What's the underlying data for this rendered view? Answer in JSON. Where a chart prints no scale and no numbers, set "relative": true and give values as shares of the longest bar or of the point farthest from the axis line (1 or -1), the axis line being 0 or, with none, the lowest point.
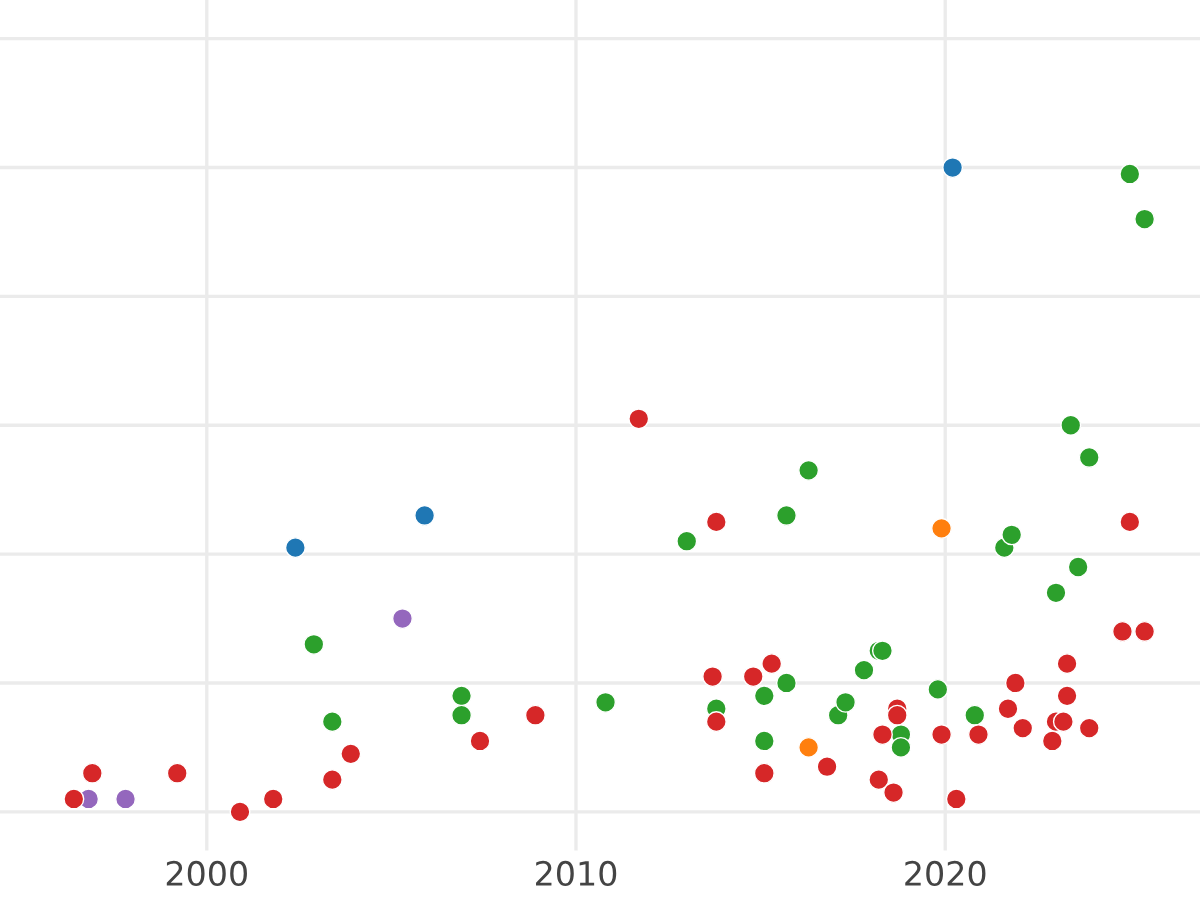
{
  "chart_data": {
    "type": "scatter",
    "relative": true,
    "xlim": [
      1994.4,
      2026.9
    ],
    "xticks": [
      2000,
      2010,
      2020
    ],
    "grid": true,
    "marker": "circle",
    "series": [
      {
        "color": "#1f77b4",
        "x": [
          2002.4,
          2005.9,
          2020.2
        ],
        "values": [
          0.41,
          0.46,
          1
        ]
      },
      {
        "color": "#9467bd",
        "x": [
          1996.8,
          1997.8,
          2005.3
        ],
        "values": [
          0.02,
          0.02,
          0.3
        ]
      },
      {
        "color": "#ff7f0e",
        "x": [
          2016.3,
          2019.9
        ],
        "values": [
          0.1,
          0.44
        ]
      },
      {
        "color": "#2ca02c",
        "x": [
          2002.9,
          2003.4,
          2006.9,
          2006.9,
          2010.8,
          2013.0,
          2013.8,
          2015.1,
          2015.1,
          2015.7,
          2016.3,
          2015.7,
          2017.1,
          2017.3,
          2017.8,
          2018.2,
          2018.3,
          2018.8,
          2018.8,
          2019.8,
          2020.8,
          2021.6,
          2021.8,
          2023.0,
          2023.6,
          2023.4,
          2023.9,
          2025.0,
          2025.4
        ],
        "values": [
          0.26,
          0.14,
          0.18,
          0.15,
          0.17,
          0.42,
          0.16,
          0.18,
          0.11,
          0.2,
          0.53,
          0.46,
          0.15,
          0.17,
          0.22,
          0.25,
          0.25,
          0.12,
          0.1,
          0.19,
          0.15,
          0.41,
          0.43,
          0.34,
          0.38,
          0.6,
          0.55,
          0.99,
          0.92
        ]
      },
      {
        "color": "#d62728",
        "x": [
          1996.4,
          1996.9,
          1999.2,
          2000.9,
          2001.8,
          2003.4,
          2003.9,
          2007.4,
          2008.9,
          2011.7,
          2013.8,
          2013.7,
          2013.8,
          2014.8,
          2015.3,
          2015.1,
          2016.8,
          2018.2,
          2018.3,
          2018.6,
          2018.7,
          2018.7,
          2019.9,
          2020.3,
          2020.9,
          2021.7,
          2021.9,
          2022.1,
          2022.9,
          2023.0,
          2023.2,
          2023.3,
          2023.3,
          2023.9,
          2024.8,
          2025.4,
          2025.0
        ],
        "values": [
          0.02,
          0.06,
          0.06,
          0,
          0.02,
          0.05,
          0.09,
          0.11,
          0.15,
          0.61,
          0.45,
          0.21,
          0.14,
          0.21,
          0.23,
          0.06,
          0.07,
          0.05,
          0.12,
          0.03,
          0.16,
          0.15,
          0.12,
          0.02,
          0.12,
          0.16,
          0.2,
          0.13,
          0.11,
          0.14,
          0.14,
          0.23,
          0.18,
          0.13,
          0.28,
          0.28,
          0.45
        ]
      }
    ]
  }
}
